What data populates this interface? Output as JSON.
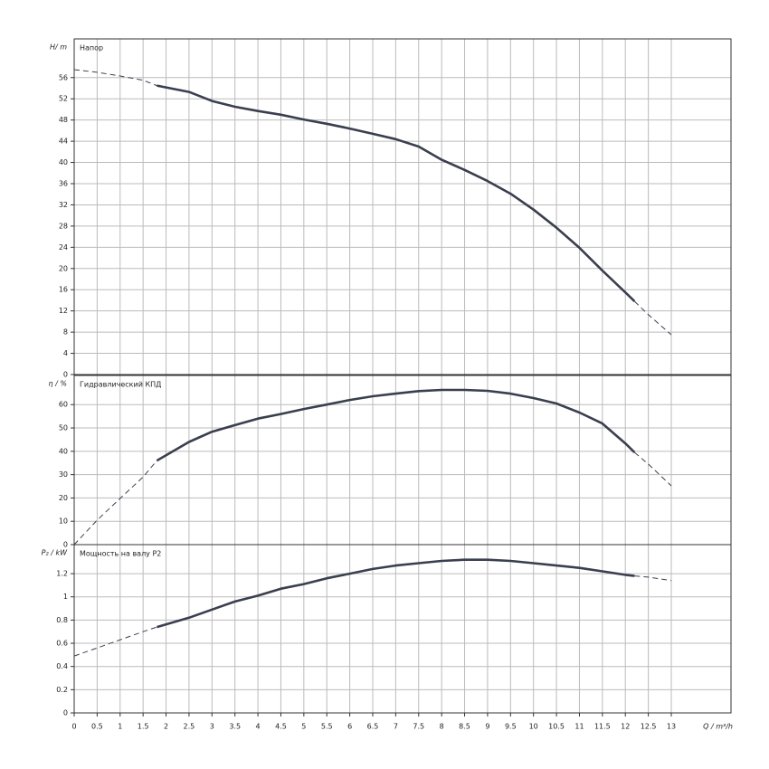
{
  "chart_data": [
    {
      "type": "line",
      "title": "Напор",
      "y_label": "H/ m",
      "grid": true,
      "xlim": [
        0,
        14.3
      ],
      "ylim": [
        0,
        63.3
      ],
      "yticks": [
        0,
        4,
        8,
        12,
        16,
        20,
        24,
        28,
        32,
        36,
        40,
        44,
        48,
        52,
        56
      ],
      "x": [
        0,
        0.5,
        1,
        1.5,
        1.8,
        2.5,
        3,
        3.5,
        4,
        4.5,
        5,
        5.5,
        6,
        6.5,
        7,
        7.5,
        8,
        8.5,
        9,
        9.5,
        10,
        10.5,
        11,
        11.5,
        12,
        12.2,
        12.5,
        13
      ],
      "series": [
        {
          "style": "dashed",
          "color": "#3a3f4f",
          "values": [
            57.5,
            57,
            56.3,
            55.5,
            54.5,
            null,
            null,
            null,
            null,
            null,
            null,
            null,
            null,
            null,
            null,
            null,
            null,
            null,
            null,
            null,
            null,
            null,
            null,
            null,
            null,
            13.8,
            11.3,
            7.5
          ]
        },
        {
          "style": "solid",
          "color": "#3a3f4f",
          "values": [
            null,
            null,
            null,
            null,
            54.5,
            53.3,
            51.6,
            50.5,
            49.7,
            49,
            48.1,
            47.3,
            46.4,
            45.4,
            44.4,
            43,
            40.5,
            38.6,
            36.5,
            34.1,
            31.1,
            27.7,
            23.9,
            19.6,
            15.5,
            13.8,
            null,
            null
          ]
        }
      ]
    },
    {
      "type": "line",
      "title": "Гидравлический КПД",
      "y_label": "η / %",
      "grid": true,
      "xlim": [
        0,
        14.3
      ],
      "ylim": [
        0,
        72.5
      ],
      "yticks": [
        0,
        10,
        20,
        30,
        40,
        50,
        60
      ],
      "x": [
        0,
        0.5,
        1,
        1.5,
        1.8,
        2.5,
        3,
        3.5,
        4,
        4.5,
        5,
        5.5,
        6,
        6.5,
        7,
        7.5,
        8,
        8.5,
        9,
        9.5,
        10,
        10.5,
        11,
        11.5,
        12,
        12.2,
        12.5,
        13
      ],
      "series": [
        {
          "style": "dashed",
          "color": "#3a3f4f",
          "values": [
            0,
            10.5,
            19.8,
            29,
            36,
            null,
            null,
            null,
            null,
            null,
            null,
            null,
            null,
            null,
            null,
            null,
            null,
            null,
            null,
            null,
            null,
            null,
            null,
            null,
            null,
            39.5,
            34.5,
            25.2
          ]
        },
        {
          "style": "solid",
          "color": "#3a3f4f",
          "values": [
            null,
            null,
            null,
            null,
            36,
            44,
            48.4,
            51.2,
            54,
            56,
            58.1,
            60,
            62,
            63.6,
            64.7,
            65.8,
            66.3,
            66.3,
            65.9,
            64.7,
            62.8,
            60.5,
            56.6,
            51.9,
            43.4,
            39.5,
            null,
            null
          ]
        }
      ]
    },
    {
      "type": "line",
      "title": "Мощность на валу P2",
      "y_label": "P₂ / kW",
      "x_label": "Q / m³/h",
      "grid": true,
      "xlim": [
        0,
        14.3
      ],
      "ylim": [
        0,
        1.45
      ],
      "xticks": [
        0,
        0.5,
        1,
        1.5,
        2,
        2.5,
        3,
        3.5,
        4,
        4.5,
        5,
        5.5,
        6,
        6.5,
        7,
        7.5,
        8,
        8.5,
        9,
        9.5,
        10,
        10.5,
        11,
        11.5,
        12,
        12.5,
        13
      ],
      "yticks": [
        0,
        0.2,
        0.4,
        0.6,
        0.8,
        1,
        1.2
      ],
      "x": [
        0,
        0.5,
        1,
        1.5,
        1.8,
        2.5,
        3,
        3.5,
        4,
        4.5,
        5,
        5.5,
        6,
        6.5,
        7,
        7.5,
        8,
        8.5,
        9,
        9.5,
        10,
        10.5,
        11,
        11.5,
        12,
        12.2,
        12.5,
        13
      ],
      "series": [
        {
          "style": "dashed",
          "color": "#3a3f4f",
          "values": [
            0.49,
            0.56,
            0.63,
            0.7,
            0.74,
            null,
            null,
            null,
            null,
            null,
            null,
            null,
            null,
            null,
            null,
            null,
            null,
            null,
            null,
            null,
            null,
            null,
            null,
            null,
            null,
            1.18,
            1.17,
            1.14
          ]
        },
        {
          "style": "solid",
          "color": "#3a3f4f",
          "values": [
            null,
            null,
            null,
            null,
            0.74,
            0.82,
            0.89,
            0.96,
            1.01,
            1.07,
            1.11,
            1.16,
            1.2,
            1.24,
            1.27,
            1.29,
            1.31,
            1.32,
            1.32,
            1.31,
            1.29,
            1.27,
            1.25,
            1.22,
            1.19,
            1.18,
            null,
            null
          ]
        }
      ]
    }
  ]
}
